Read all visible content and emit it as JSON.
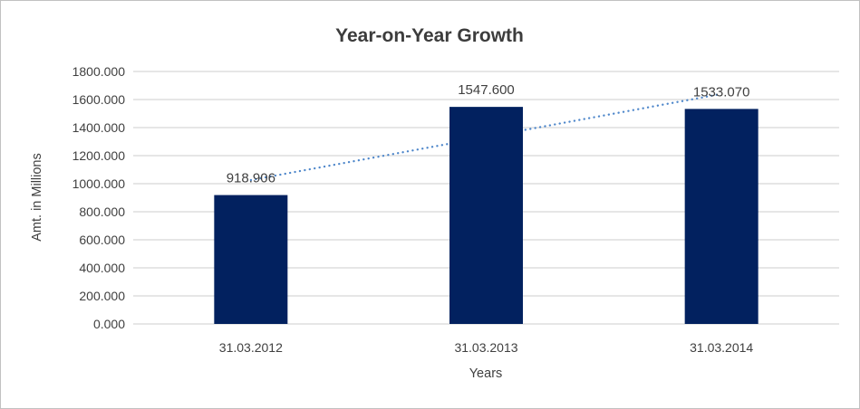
{
  "window": {
    "background": "#FFFFFF",
    "border_color": "#C1C1C1"
  },
  "chart_data": {
    "type": "bar",
    "title": "Year-on-Year Growth",
    "categories": [
      "31.03.2012",
      "31.03.2013",
      "31.03.2014"
    ],
    "values": [
      918.906,
      1547.6,
      1533.07
    ],
    "data_labels": [
      "918.906",
      "1547.600",
      "1533.070"
    ],
    "xlabel": "Years",
    "ylabel": "Amt. in Millions",
    "ylim": [
      0,
      1800
    ],
    "ytick_values": [
      0,
      200,
      400,
      600,
      800,
      1000,
      1200,
      1400,
      1600,
      1800
    ],
    "ytick_labels": [
      "0.000",
      "200.000",
      "400.000",
      "600.000",
      "800.000",
      "1000.000",
      "1200.000",
      "1400.000",
      "1600.000",
      "1800.000"
    ],
    "grid": true,
    "legend": "none",
    "trendline": {
      "style": "dotted",
      "start_value": 1026,
      "end_value": 1640,
      "color": "#4D86CA"
    },
    "colors": {
      "bar": "#02215F",
      "gridline": "#D6D6D6",
      "text": "#404040",
      "title": "#3C3C3C"
    }
  }
}
